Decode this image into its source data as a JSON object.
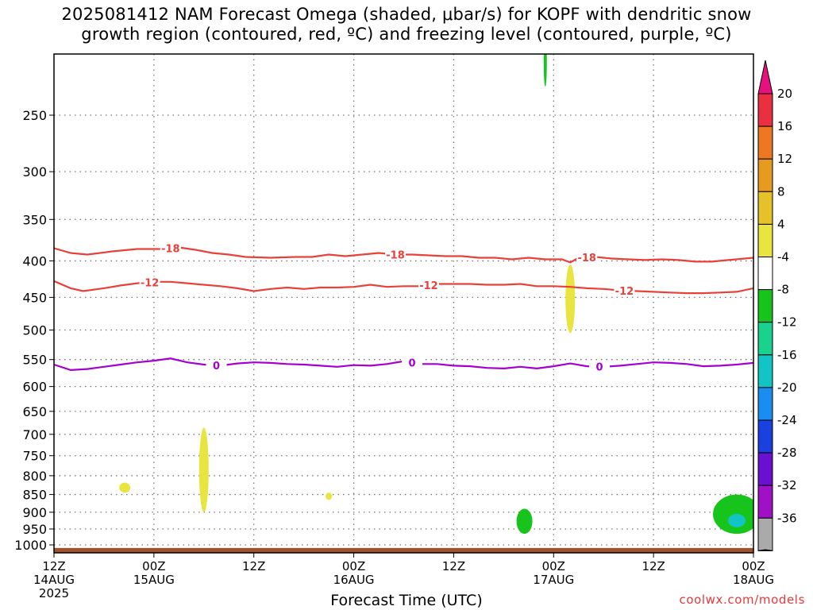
{
  "title": {
    "line1": "2025081412 NAM Forecast Omega (shaded, μbar/s) for KOPF with dendritic snow",
    "line2": "growth region (contoured, red, ºC) and freezing level (contoured, purple, ºC)"
  },
  "credit": "coolwx.com/models",
  "chart_data": {
    "type": "heatmap",
    "title": "2025081412 NAM Forecast Omega (shaded, μbar/s) for KOPF with dendritic snow growth region (contoured, red, ºC) and freezing level (contoured, purple, ºC)",
    "xlabel": "Forecast Time (UTC)",
    "ylabel": "",
    "x_unit": "hours since 2025-08-14 12Z",
    "xlim": [
      0,
      84
    ],
    "ylim": [
      1000,
      200
    ],
    "y_scale": "log-pressure",
    "grid": true,
    "x_ticks": [
      {
        "x": 0,
        "label": "12Z",
        "date": "14AUG",
        "year": "2025"
      },
      {
        "x": 12,
        "label": "00Z",
        "date": "15AUG",
        "year": ""
      },
      {
        "x": 24,
        "label": "12Z",
        "date": "",
        "year": ""
      },
      {
        "x": 36,
        "label": "00Z",
        "date": "16AUG",
        "year": ""
      },
      {
        "x": 48,
        "label": "12Z",
        "date": "",
        "year": ""
      },
      {
        "x": 60,
        "label": "00Z",
        "date": "17AUG",
        "year": ""
      },
      {
        "x": 72,
        "label": "12Z",
        "date": "",
        "year": ""
      },
      {
        "x": 84,
        "label": "00Z",
        "date": "18AUG",
        "year": ""
      }
    ],
    "y_ticks": [
      "250",
      "300",
      "350",
      "400",
      "450",
      "500",
      "550",
      "600",
      "650",
      "700",
      "750",
      "800",
      "850",
      "900",
      "950",
      "1000"
    ],
    "contours": [
      {
        "name": "-18",
        "color": "#e8413a",
        "label": "-18",
        "label_at": [
          14,
          41,
          64
        ],
        "points": [
          [
            0,
            384
          ],
          [
            2,
            390
          ],
          [
            4,
            392
          ],
          [
            7,
            388
          ],
          [
            10,
            385
          ],
          [
            13,
            385
          ],
          [
            15,
            383
          ],
          [
            17,
            386
          ],
          [
            19,
            390
          ],
          [
            21,
            392
          ],
          [
            23,
            395
          ],
          [
            26,
            396
          ],
          [
            29,
            395
          ],
          [
            31,
            395
          ],
          [
            33,
            392
          ],
          [
            35,
            394
          ],
          [
            37,
            392
          ],
          [
            39,
            390
          ],
          [
            41,
            392
          ],
          [
            43,
            392
          ],
          [
            45,
            393
          ],
          [
            47,
            394
          ],
          [
            49,
            394
          ],
          [
            51,
            396
          ],
          [
            53,
            396
          ],
          [
            55,
            398
          ],
          [
            57,
            396
          ],
          [
            59,
            398
          ],
          [
            61,
            398
          ],
          [
            62,
            402
          ],
          [
            63,
            396
          ],
          [
            65,
            395
          ],
          [
            67,
            397
          ],
          [
            69,
            398
          ],
          [
            71,
            399
          ],
          [
            73,
            398
          ],
          [
            75,
            399
          ],
          [
            77,
            401
          ],
          [
            79,
            401
          ],
          [
            81,
            399
          ],
          [
            84,
            396
          ]
        ]
      },
      {
        "name": "-12",
        "color": "#e8413a",
        "label": "-12",
        "label_at": [
          11.5,
          45,
          68.5
        ],
        "points": [
          [
            0,
            427
          ],
          [
            2,
            437
          ],
          [
            3.5,
            441
          ],
          [
            6,
            437
          ],
          [
            8,
            433
          ],
          [
            10,
            430
          ],
          [
            12,
            428
          ],
          [
            14,
            428
          ],
          [
            16,
            430
          ],
          [
            18,
            432
          ],
          [
            20,
            434
          ],
          [
            22,
            437
          ],
          [
            24,
            441
          ],
          [
            26,
            438
          ],
          [
            28,
            436
          ],
          [
            30,
            438
          ],
          [
            32,
            436
          ],
          [
            34,
            436
          ],
          [
            36,
            435
          ],
          [
            38,
            432
          ],
          [
            40,
            435
          ],
          [
            42,
            434
          ],
          [
            44,
            434
          ],
          [
            46,
            431
          ],
          [
            48,
            431
          ],
          [
            50,
            431
          ],
          [
            52,
            432
          ],
          [
            54,
            432
          ],
          [
            56,
            431
          ],
          [
            58,
            434
          ],
          [
            60,
            434
          ],
          [
            62,
            435
          ],
          [
            64,
            437
          ],
          [
            66,
            438
          ],
          [
            68,
            440
          ],
          [
            70,
            441
          ],
          [
            72,
            442
          ],
          [
            74,
            443
          ],
          [
            76,
            444
          ],
          [
            78,
            444
          ],
          [
            80,
            443
          ],
          [
            82,
            442
          ],
          [
            84,
            437
          ]
        ]
      },
      {
        "name": "0",
        "color": "#a400cf",
        "label": "0",
        "label_at": [
          19.5,
          43,
          65.5
        ],
        "points": [
          [
            0,
            559
          ],
          [
            2,
            569
          ],
          [
            4,
            567
          ],
          [
            6,
            563
          ],
          [
            8,
            559
          ],
          [
            10,
            555
          ],
          [
            12,
            552
          ],
          [
            14,
            548
          ],
          [
            16,
            555
          ],
          [
            18,
            559
          ],
          [
            20,
            561
          ],
          [
            22,
            557
          ],
          [
            24,
            555
          ],
          [
            26,
            556
          ],
          [
            28,
            558
          ],
          [
            30,
            559
          ],
          [
            32,
            561
          ],
          [
            34,
            563
          ],
          [
            36,
            560
          ],
          [
            38,
            561
          ],
          [
            40,
            558
          ],
          [
            42,
            553
          ],
          [
            44,
            558
          ],
          [
            46,
            558
          ],
          [
            48,
            561
          ],
          [
            50,
            562
          ],
          [
            52,
            565
          ],
          [
            54,
            566
          ],
          [
            56,
            563
          ],
          [
            58,
            566
          ],
          [
            60,
            562
          ],
          [
            62,
            557
          ],
          [
            64,
            562
          ],
          [
            66,
            563
          ],
          [
            68,
            561
          ],
          [
            70,
            558
          ],
          [
            72,
            555
          ],
          [
            74,
            556
          ],
          [
            76,
            558
          ],
          [
            78,
            562
          ],
          [
            80,
            561
          ],
          [
            82,
            559
          ],
          [
            84,
            556
          ]
        ]
      }
    ],
    "omega_shaded": [
      {
        "x": 8.5,
        "p_top": 818,
        "p_bottom": 845,
        "value": 6
      },
      {
        "x": 18.0,
        "p_top": 685,
        "p_bottom": 900,
        "value": 6
      },
      {
        "x": 33.0,
        "p_top": 845,
        "p_bottom": 865,
        "value": 5
      },
      {
        "x": 59.0,
        "p_top": 195,
        "p_bottom": 228,
        "value": -6
      },
      {
        "x": 62.0,
        "p_top": 405,
        "p_bottom": 505,
        "value": 6
      },
      {
        "x": 56.5,
        "p_top": 890,
        "p_bottom": 965,
        "value": -6
      },
      {
        "x": 82.0,
        "p_top": 850,
        "p_bottom": 965,
        "value": -7
      },
      {
        "x": 82.0,
        "p_top": 905,
        "p_bottom": 945,
        "value": -12
      }
    ],
    "colorbar": {
      "ticks": [
        "20",
        "16",
        "12",
        "8",
        "4",
        "-4",
        "-8",
        "-12",
        "-16",
        "-20",
        "-24",
        "-28",
        "-32",
        "-36"
      ],
      "colors": [
        "#ea3040",
        "#ee7822",
        "#e69a20",
        "#e6c22a",
        "#e8e440",
        "#ffffff",
        "#16c41c",
        "#1ad28e",
        "#12c4c4",
        "#1a8ef0",
        "#1a40e0",
        "#6a10d2",
        "#a010c4",
        "#aaaaaa"
      ],
      "upper_arrow_color": "#e6117f",
      "lower_arrow_color": "#000000"
    }
  }
}
